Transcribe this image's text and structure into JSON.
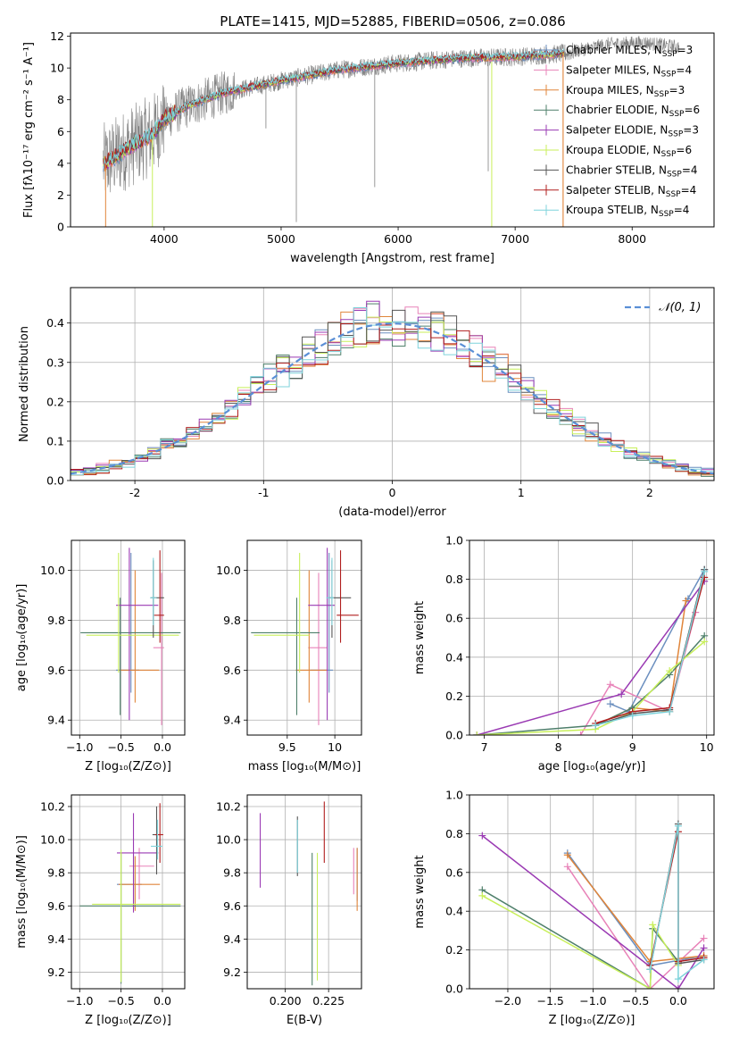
{
  "figure": {
    "title": "PLATE=1415, MJD=52885, FIBERID=0506, z=0.086"
  },
  "colors": {
    "chabrier_miles": "#6b8fbf",
    "salpeter_miles": "#e882b8",
    "kroupa_miles": "#e0853a",
    "chabrier_elodie": "#4e7f6a",
    "salpeter_elodie": "#9a3ab3",
    "kroupa_elodie": "#c8ef5a",
    "chabrier_stelib": "#555555",
    "salpeter_stelib": "#b01e1e",
    "kroupa_stelib": "#7fd3db",
    "data": "#808080",
    "gaussian": "#5a8fd6"
  },
  "chart_data": [
    {
      "id": "spectrum",
      "type": "line",
      "xlabel": "wavelength [Angstrom, rest frame]",
      "ylabel": "Flux [fλ10⁻¹⁷ erg cm⁻² s⁻¹ A⁻¹]",
      "xlim": [
        3200,
        8700
      ],
      "ylim": [
        0,
        12.2
      ],
      "xticks": [
        4000,
        5000,
        6000,
        7000,
        8000
      ],
      "yticks": [
        0,
        2,
        4,
        6,
        8,
        10,
        12
      ],
      "grid": false,
      "legend_position": "top-right",
      "legend": [
        {
          "main": "Chabrier MILES, N",
          "sub": "SSP",
          "tail": "=3",
          "color_key": "chabrier_miles"
        },
        {
          "main": "Salpeter MILES, N",
          "sub": "SSP",
          "tail": "=4",
          "color_key": "salpeter_miles"
        },
        {
          "main": "Kroupa MILES, N",
          "sub": "SSP",
          "tail": "=3",
          "color_key": "kroupa_miles"
        },
        {
          "main": "Chabrier ELODIE, N",
          "sub": "SSP",
          "tail": "=6",
          "color_key": "chabrier_elodie"
        },
        {
          "main": "Salpeter ELODIE, N",
          "sub": "SSP",
          "tail": "=3",
          "color_key": "salpeter_elodie"
        },
        {
          "main": "Kroupa ELODIE, N",
          "sub": "SSP",
          "tail": "=6",
          "color_key": "kroupa_elodie"
        },
        {
          "main": "Chabrier STELIB, N",
          "sub": "SSP",
          "tail": "=4",
          "color_key": "chabrier_stelib"
        },
        {
          "main": "Salpeter STELIB, N",
          "sub": "SSP",
          "tail": "=4",
          "color_key": "salpeter_stelib"
        },
        {
          "main": "Kroupa STELIB, N",
          "sub": "SSP",
          "tail": "=4",
          "color_key": "kroupa_stelib"
        }
      ],
      "data_continuum": [
        [
          3500,
          4.0
        ],
        [
          3700,
          5.0
        ],
        [
          3900,
          5.8
        ],
        [
          4000,
          6.8
        ],
        [
          4200,
          7.6
        ],
        [
          4500,
          8.4
        ],
        [
          5000,
          9.2
        ],
        [
          5500,
          9.9
        ],
        [
          6000,
          10.3
        ],
        [
          6500,
          10.6
        ],
        [
          7000,
          10.7
        ],
        [
          7400,
          10.9
        ],
        [
          7800,
          11.5
        ],
        [
          8100,
          11.6
        ],
        [
          8400,
          11.3
        ]
      ],
      "model_range": [
        3480,
        7420
      ]
    },
    {
      "id": "residuals",
      "type": "step",
      "xlabel": "(data-model)/error",
      "ylabel": "Normed distribution",
      "xlim": [
        -2.5,
        2.5
      ],
      "ylim": [
        0,
        0.49
      ],
      "xticks": [
        -2,
        -1,
        0,
        1,
        2
      ],
      "yticks": [
        0.0,
        0.1,
        0.2,
        0.3,
        0.4
      ],
      "grid": true,
      "legend_position": "top-right",
      "gaussian_label": "𝒩(0, 1)",
      "bin_width": 0.1
    },
    {
      "id": "age_vs_Z",
      "type": "errorbar",
      "xlabel": "Z [log₁₀(Z/Z⊙)]",
      "ylabel": "age  [log₁₀(age/yr)]",
      "xlim": [
        -1.1,
        0.27
      ],
      "ylim": [
        9.34,
        10.12
      ],
      "xticks": [
        -1.0,
        -0.5,
        0.0
      ],
      "xticklabels": [
        "−1.0",
        "−0.5",
        "0.0"
      ],
      "yticks": [
        9.4,
        9.6,
        9.8,
        10.0
      ],
      "grid": true,
      "points": [
        {
          "c": "chabrier_miles",
          "x": -0.38,
          "y": 9.6,
          "xe": [
            0.18,
            0.1
          ],
          "ye": [
            0.09,
            0.47
          ]
        },
        {
          "c": "salpeter_miles",
          "x": -0.01,
          "y": 9.69,
          "xe": [
            0.1,
            0.03
          ],
          "ye": [
            0.31,
            0.3
          ]
        },
        {
          "c": "kroupa_miles",
          "x": -0.33,
          "y": 9.6,
          "xe": [
            0.2,
            0.29
          ],
          "ye": [
            0.13,
            0.4
          ]
        },
        {
          "c": "chabrier_elodie",
          "x": -0.51,
          "y": 9.75,
          "xe": [
            0.48,
            0.73
          ],
          "ye": [
            0.33,
            0.14
          ]
        },
        {
          "c": "salpeter_elodie",
          "x": -0.4,
          "y": 9.86,
          "xe": [
            0.16,
            0.35
          ],
          "ye": [
            0.46,
            0.23
          ]
        },
        {
          "c": "kroupa_elodie",
          "x": -0.53,
          "y": 9.74,
          "xe": [
            0.39,
            0.73
          ],
          "ye": [
            0.15,
            0.33
          ]
        },
        {
          "c": "chabrier_stelib",
          "x": -0.11,
          "y": 9.89,
          "xe": [
            0.03,
            0.13
          ],
          "ye": [
            0.16,
            0.15
          ]
        },
        {
          "c": "salpeter_stelib",
          "x": -0.03,
          "y": 9.82,
          "xe": [
            0.07,
            0.05
          ],
          "ye": [
            0.11,
            0.26
          ]
        },
        {
          "c": "kroupa_stelib",
          "x": -0.11,
          "y": 9.89,
          "xe": [
            0.04,
            0.04
          ],
          "ye": [
            0.11,
            0.16
          ]
        }
      ]
    },
    {
      "id": "age_vs_mass",
      "type": "errorbar",
      "xlabel": "mass [log₁₀(M/M⊙)]",
      "ylabel": "",
      "xlim": [
        9.08,
        10.28
      ],
      "ylim": [
        9.34,
        10.12
      ],
      "xticks": [
        9.5,
        10.0
      ],
      "yticks": [
        9.4,
        9.6,
        9.8,
        10.0
      ],
      "grid": true,
      "points": [
        {
          "c": "chabrier_miles",
          "x": 9.94,
          "y": 9.6,
          "xe": [
            0.2,
            0.04
          ],
          "ye": [
            0.09,
            0.47
          ]
        },
        {
          "c": "salpeter_miles",
          "x": 9.83,
          "y": 9.69,
          "xe": [
            0.11,
            0.09
          ],
          "ye": [
            0.31,
            0.3
          ]
        },
        {
          "c": "kroupa_miles",
          "x": 9.73,
          "y": 9.6,
          "xe": [
            0.14,
            0.19
          ],
          "ye": [
            0.13,
            0.4
          ]
        },
        {
          "c": "chabrier_elodie",
          "x": 9.6,
          "y": 9.75,
          "xe": [
            0.48,
            0.24
          ],
          "ye": [
            0.33,
            0.14
          ]
        },
        {
          "c": "salpeter_elodie",
          "x": 9.92,
          "y": 9.86,
          "xe": [
            0.2,
            0.08
          ],
          "ye": [
            0.46,
            0.23
          ]
        },
        {
          "c": "kroupa_elodie",
          "x": 9.63,
          "y": 9.74,
          "xe": [
            0.48,
            0.1
          ],
          "ye": [
            0.15,
            0.33
          ]
        },
        {
          "c": "chabrier_stelib",
          "x": 9.97,
          "y": 9.89,
          "xe": [
            0.03,
            0.2
          ],
          "ye": [
            0.16,
            0.15
          ]
        },
        {
          "c": "salpeter_stelib",
          "x": 10.06,
          "y": 9.82,
          "xe": [
            0.04,
            0.19
          ],
          "ye": [
            0.11,
            0.26
          ]
        },
        {
          "c": "kroupa_stelib",
          "x": 9.97,
          "y": 9.89,
          "xe": [
            0.06,
            0.02
          ],
          "ye": [
            0.11,
            0.16
          ]
        }
      ]
    },
    {
      "id": "massweight_vs_age",
      "type": "line",
      "xlabel": "age  [log₁₀(age/yr)]",
      "ylabel": "mass weight",
      "xlim": [
        6.8,
        10.1
      ],
      "ylim": [
        0,
        1.0
      ],
      "xticks": [
        7,
        8,
        9,
        10
      ],
      "yticks": [
        0.0,
        0.2,
        0.4,
        0.6,
        0.8,
        1.0
      ],
      "grid": true,
      "series": [
        {
          "c": "chabrier_miles",
          "x": [
            8.7,
            8.95,
            9.75,
            9.97
          ],
          "y": [
            0.16,
            0.12,
            0.7,
            0.85
          ]
        },
        {
          "c": "salpeter_miles",
          "x": [
            8.3,
            8.7,
            9.5,
            9.85
          ],
          "y": [
            0.0,
            0.26,
            0.12,
            0.63
          ]
        },
        {
          "c": "kroupa_miles",
          "x": [
            8.5,
            9.0,
            9.5,
            9.72
          ],
          "y": [
            0.05,
            0.14,
            0.12,
            0.69
          ]
        },
        {
          "c": "chabrier_elodie",
          "x": [
            6.9,
            8.5,
            9.0,
            9.5,
            9.97
          ],
          "y": [
            0.0,
            0.05,
            0.14,
            0.31,
            0.51
          ]
        },
        {
          "c": "salpeter_elodie",
          "x": [
            6.9,
            8.85,
            9.97
          ],
          "y": [
            0.0,
            0.21,
            0.79
          ]
        },
        {
          "c": "kroupa_elodie",
          "x": [
            6.9,
            8.5,
            9.0,
            9.5,
            9.97
          ],
          "y": [
            0.0,
            0.03,
            0.12,
            0.33,
            0.48
          ]
        },
        {
          "c": "chabrier_stelib",
          "x": [
            8.5,
            9.0,
            9.5,
            9.97
          ],
          "y": [
            0.05,
            0.11,
            0.13,
            0.85
          ]
        },
        {
          "c": "salpeter_stelib",
          "x": [
            8.5,
            9.0,
            9.5,
            9.97
          ],
          "y": [
            0.06,
            0.12,
            0.14,
            0.81
          ]
        },
        {
          "c": "kroupa_stelib",
          "x": [
            8.5,
            9.0,
            9.5,
            9.97
          ],
          "y": [
            0.05,
            0.1,
            0.12,
            0.84
          ]
        }
      ]
    },
    {
      "id": "mass_vs_Z",
      "type": "errorbar",
      "xlabel": "Z [log₁₀(Z/Z⊙)]",
      "ylabel": "mass [log₁₀(M/M⊙)]",
      "xlim": [
        -1.1,
        0.27
      ],
      "ylim": [
        9.1,
        10.27
      ],
      "xticks": [
        -1.0,
        -0.5,
        0.0
      ],
      "xticklabels": [
        "−1.0",
        "−0.5",
        "0.0"
      ],
      "yticks": [
        9.2,
        9.4,
        9.6,
        9.8,
        10.0,
        10.2
      ],
      "grid": true,
      "points": [
        {
          "c": "chabrier_miles",
          "x": -0.35,
          "y": 9.73,
          "xe": [
            0.2,
            0.1
          ],
          "ye": [
            0.15,
            0.17
          ]
        },
        {
          "c": "salpeter_miles",
          "x": -0.28,
          "y": 9.84,
          "xe": [
            0.12,
            0.18
          ],
          "ye": [
            0.2,
            0.11
          ]
        },
        {
          "c": "kroupa_miles",
          "x": -0.33,
          "y": 9.73,
          "xe": [
            0.2,
            0.3
          ],
          "ye": [
            0.16,
            0.17
          ]
        },
        {
          "c": "chabrier_elodie",
          "x": -0.5,
          "y": 9.6,
          "xe": [
            0.5,
            0.72
          ],
          "ye": [
            0.47,
            0.32
          ]
        },
        {
          "c": "salpeter_elodie",
          "x": -0.35,
          "y": 9.92,
          "xe": [
            0.2,
            0.3
          ],
          "ye": [
            0.36,
            0.24
          ]
        },
        {
          "c": "kroupa_elodie",
          "x": -0.5,
          "y": 9.61,
          "xe": [
            0.35,
            0.72
          ],
          "ye": [
            0.47,
            0.33
          ]
        },
        {
          "c": "chabrier_stelib",
          "x": -0.07,
          "y": 10.03,
          "xe": [
            0.05,
            0.05
          ],
          "ye": [
            0.24,
            0.17
          ]
        },
        {
          "c": "salpeter_stelib",
          "x": -0.03,
          "y": 10.03,
          "xe": [
            0.06,
            0.04
          ],
          "ye": [
            0.17,
            0.19
          ]
        },
        {
          "c": "kroupa_stelib",
          "x": -0.06,
          "y": 9.96,
          "xe": [
            0.08,
            0.06
          ],
          "ye": [
            0.08,
            0.16
          ]
        }
      ]
    },
    {
      "id": "mass_vs_ebv",
      "type": "errorbar",
      "xlabel": "E(B-V)",
      "ylabel": "",
      "xlim": [
        0.178,
        0.244
      ],
      "ylim": [
        9.1,
        10.27
      ],
      "xticks": [
        0.2,
        0.225
      ],
      "xticklabels": [
        "0.200",
        "0.225"
      ],
      "yticks": [
        9.2,
        9.4,
        9.6,
        9.8,
        10.0,
        10.2
      ],
      "grid": true,
      "points": [
        {
          "c": "chabrier_miles",
          "x": 0.2415,
          "y": 9.77,
          "xe": [
            0,
            0
          ],
          "ye": [
            0.14,
            0.18
          ]
        },
        {
          "c": "salpeter_miles",
          "x": 0.2395,
          "y": 9.82,
          "xe": [
            0,
            0
          ],
          "ye": [
            0.15,
            0.13
          ]
        },
        {
          "c": "kroupa_miles",
          "x": 0.2415,
          "y": 9.75,
          "xe": [
            0,
            0
          ],
          "ye": [
            0.18,
            0.2
          ]
        },
        {
          "c": "chabrier_elodie",
          "x": 0.2155,
          "y": 9.53,
          "xe": [
            0,
            0
          ],
          "ye": [
            0.41,
            0.39
          ]
        },
        {
          "c": "salpeter_elodie",
          "x": 0.1855,
          "y": 9.93,
          "xe": [
            0,
            0
          ],
          "ye": [
            0.22,
            0.23
          ]
        },
        {
          "c": "kroupa_elodie",
          "x": 0.2185,
          "y": 9.54,
          "xe": [
            0,
            0
          ],
          "ye": [
            0.39,
            0.38
          ]
        },
        {
          "c": "chabrier_stelib",
          "x": 0.207,
          "y": 9.93,
          "xe": [
            0,
            0
          ],
          "ye": [
            0.15,
            0.21
          ]
        },
        {
          "c": "salpeter_stelib",
          "x": 0.2225,
          "y": 10.04,
          "xe": [
            0,
            0
          ],
          "ye": [
            0.18,
            0.19
          ]
        },
        {
          "c": "kroupa_stelib",
          "x": 0.207,
          "y": 9.95,
          "xe": [
            0,
            0
          ],
          "ye": [
            0.15,
            0.17
          ]
        }
      ]
    },
    {
      "id": "massweight_vs_Z",
      "type": "line",
      "xlabel": "Z [log₁₀(Z/Z⊙)]",
      "ylabel": "mass weight",
      "xlim": [
        -2.45,
        0.42
      ],
      "ylim": [
        0,
        1.0
      ],
      "xticks": [
        -2.0,
        -1.5,
        -1.0,
        -0.5,
        0.0
      ],
      "xticklabels": [
        "−2.0",
        "−1.5",
        "−1.0",
        "−0.5",
        "0.0"
      ],
      "yticks": [
        0.0,
        0.2,
        0.4,
        0.6,
        0.8,
        1.0
      ],
      "grid": true,
      "series": [
        {
          "c": "chabrier_miles",
          "x": [
            -1.3,
            -0.33,
            0.3
          ],
          "y": [
            0.7,
            0.12,
            0.17
          ]
        },
        {
          "c": "salpeter_miles",
          "x": [
            -1.3,
            -0.33,
            0.3
          ],
          "y": [
            0.63,
            0.0,
            0.26
          ]
        },
        {
          "c": "kroupa_miles",
          "x": [
            -1.3,
            -0.33,
            0.3
          ],
          "y": [
            0.69,
            0.14,
            0.17
          ]
        },
        {
          "c": "chabrier_elodie",
          "x": [
            -2.3,
            -0.33,
            -0.3,
            0.0
          ],
          "y": [
            0.51,
            0.0,
            0.31,
            0.14
          ]
        },
        {
          "c": "salpeter_elodie",
          "x": [
            -2.3,
            0.0,
            0.3
          ],
          "y": [
            0.79,
            0.0,
            0.21
          ]
        },
        {
          "c": "kroupa_elodie",
          "x": [
            -2.3,
            -0.33,
            -0.3,
            0.0
          ],
          "y": [
            0.48,
            0.0,
            0.33,
            0.12
          ]
        },
        {
          "c": "chabrier_stelib",
          "x": [
            -0.33,
            0.0,
            0.0,
            0.3
          ],
          "y": [
            0.1,
            0.85,
            0.13,
            0.15
          ]
        },
        {
          "c": "salpeter_stelib",
          "x": [
            -0.33,
            0.0,
            0.0,
            0.3
          ],
          "y": [
            0.12,
            0.81,
            0.14,
            0.16
          ]
        },
        {
          "c": "kroupa_stelib",
          "x": [
            -0.33,
            0.0,
            0.0,
            0.3
          ],
          "y": [
            0.1,
            0.84,
            0.05,
            0.15
          ]
        }
      ]
    }
  ]
}
